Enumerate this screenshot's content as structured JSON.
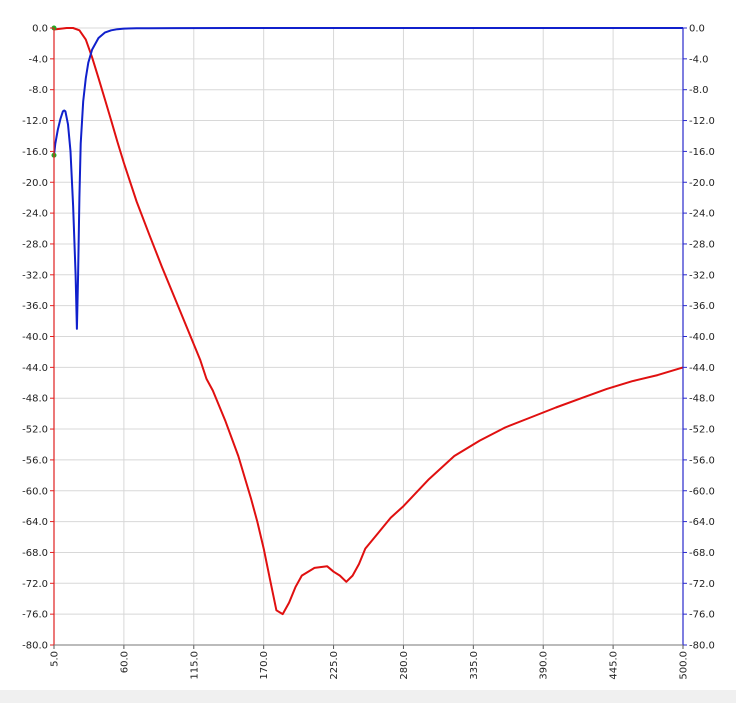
{
  "colors": {
    "background": "#ffffff",
    "grid": "#d8d8d8",
    "left_axis": "#e02020",
    "right_axis": "#2828cc",
    "series_red": "#e01010",
    "series_blue": "#1020cc",
    "marker_green": "#22aa22"
  },
  "chart_data": {
    "type": "line",
    "title": "",
    "xlabel": "",
    "ylabel": "",
    "xlim": [
      5.0,
      500.0
    ],
    "ylim": [
      -80.0,
      0.0
    ],
    "y2lim": [
      -80.0,
      0.0
    ],
    "grid": true,
    "x_ticks": [
      "5.0",
      "60.0",
      "115.0",
      "170.0",
      "225.0",
      "280.0",
      "335.0",
      "390.0",
      "445.0",
      "500.0"
    ],
    "y_ticks_left": [
      "0.0",
      "-4.0",
      "-8.0",
      "-12.0",
      "-16.0",
      "-20.0",
      "-24.0",
      "-28.0",
      "-32.0",
      "-36.0",
      "-40.0",
      "-44.0",
      "-48.0",
      "-52.0",
      "-56.0",
      "-60.0",
      "-64.0",
      "-68.0",
      "-72.0",
      "-76.0",
      "-80.0"
    ],
    "y_ticks_right": [
      "0.0",
      "-4.0",
      "-8.0",
      "-12.0",
      "-16.0",
      "-20.0",
      "-24.0",
      "-28.0",
      "-32.0",
      "-36.0",
      "-40.0",
      "-44.0",
      "-48.0",
      "-52.0",
      "-56.0",
      "-60.0",
      "-64.0",
      "-68.0",
      "-72.0",
      "-76.0",
      "-80.0"
    ],
    "series": [
      {
        "color": "#e01010",
        "x": [
          5,
          10,
          15,
          20,
          25,
          30,
          35,
          40,
          45,
          50,
          55,
          60,
          70,
          80,
          90,
          100,
          110,
          120,
          125,
          130,
          140,
          150,
          160,
          165,
          170,
          175,
          180,
          185,
          190,
          195,
          200,
          210,
          220,
          225,
          230,
          235,
          240,
          245,
          250,
          260,
          270,
          280,
          300,
          320,
          340,
          360,
          380,
          400,
          420,
          440,
          460,
          480,
          500
        ],
        "y": [
          -0.2,
          -0.1,
          0.0,
          0.0,
          -0.3,
          -1.5,
          -3.8,
          -6.5,
          -9.2,
          -12.0,
          -14.8,
          -17.5,
          -22.5,
          -26.8,
          -31.0,
          -35.0,
          -39.0,
          -43.0,
          -45.5,
          -47.0,
          -51.0,
          -55.5,
          -61.0,
          -64.0,
          -67.5,
          -71.5,
          -75.5,
          -76.0,
          -74.5,
          -72.5,
          -71.0,
          -70.0,
          -69.8,
          -70.5,
          -71.0,
          -71.8,
          -71.0,
          -69.5,
          -67.5,
          -65.5,
          -63.5,
          -62.0,
          -58.5,
          -55.5,
          -53.5,
          -51.8,
          -50.5,
          -49.2,
          -48.0,
          -46.8,
          -45.8,
          -45.0,
          -44.0
        ]
      },
      {
        "color": "#1020cc",
        "x": [
          5,
          6,
          8,
          10,
          12,
          13,
          14,
          16,
          18,
          20,
          22,
          23,
          24,
          25,
          26,
          28,
          30,
          32,
          35,
          40,
          45,
          50,
          55,
          60,
          70,
          80,
          100,
          150,
          200,
          300,
          400,
          500
        ],
        "y": [
          -16.5,
          -15.0,
          -13.2,
          -11.8,
          -10.8,
          -10.7,
          -10.8,
          -12.5,
          -16.0,
          -23.0,
          -32.0,
          -39.0,
          -32.0,
          -22.0,
          -15.0,
          -9.5,
          -6.5,
          -4.5,
          -2.8,
          -1.3,
          -0.6,
          -0.3,
          -0.15,
          -0.08,
          -0.03,
          -0.02,
          -0.01,
          0.0,
          0.0,
          0.0,
          0.0,
          0.0
        ]
      }
    ],
    "markers": [
      {
        "x": 5,
        "y": 0.0,
        "color": "#22aa22"
      },
      {
        "x": 5,
        "y": -16.5,
        "color": "#22aa22"
      }
    ]
  }
}
